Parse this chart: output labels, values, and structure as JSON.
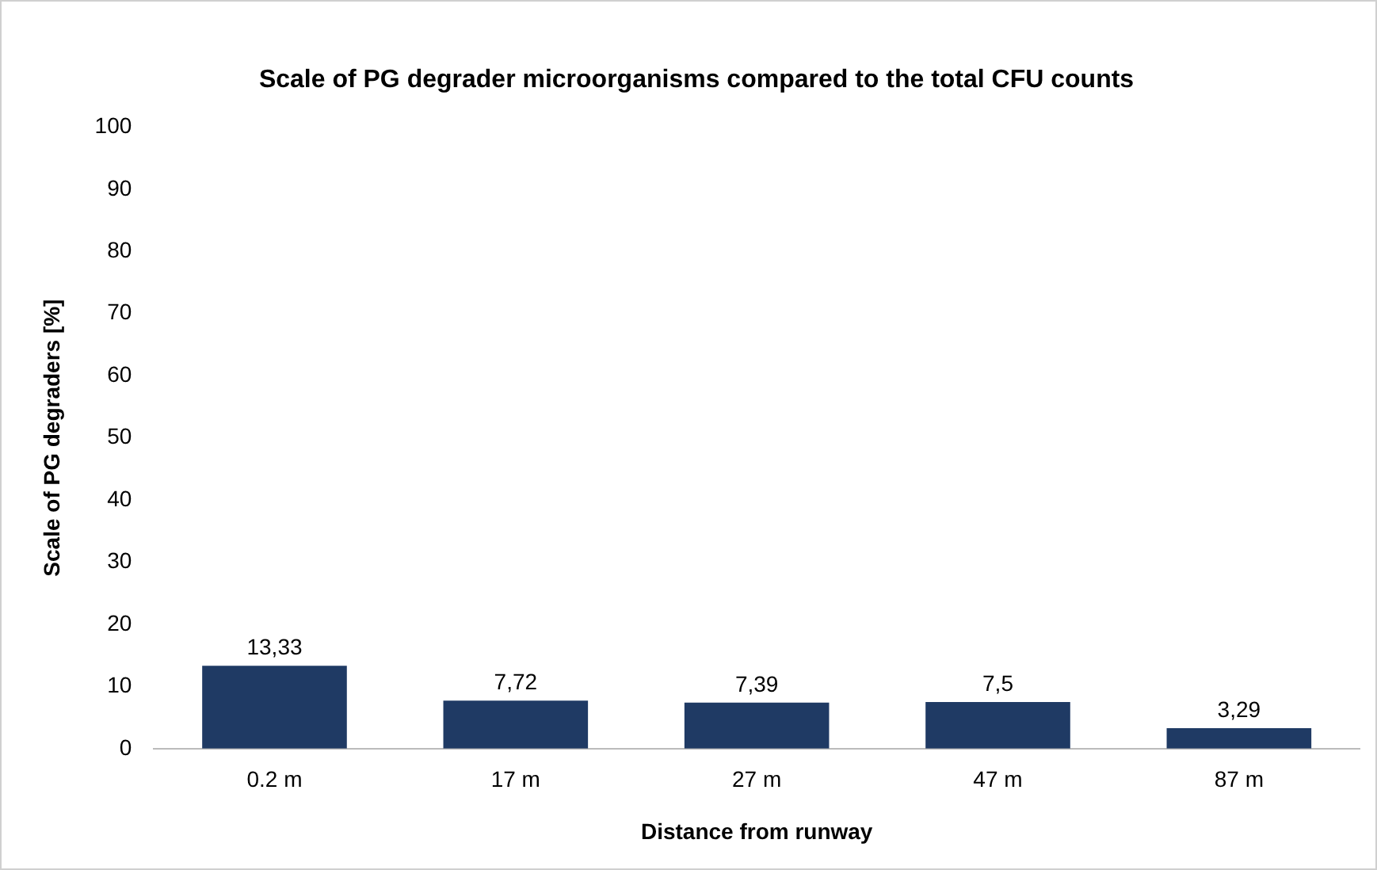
{
  "chart_data": {
    "type": "bar",
    "title": "Scale of PG degrader microorganisms compared to the total CFU counts",
    "xlabel": "Distance from runway",
    "ylabel": "Scale of PG degraders [%]",
    "categories": [
      "0.2 m",
      "17 m",
      "27 m",
      "47 m",
      "87 m"
    ],
    "values": [
      13.33,
      7.72,
      7.39,
      7.5,
      3.29
    ],
    "value_labels": [
      "13,33",
      "7,72",
      "7,39",
      "7,5",
      "3,29"
    ],
    "color": "#1f3a64",
    "ylim": [
      0,
      100
    ],
    "yticks": [
      0,
      10,
      20,
      30,
      40,
      50,
      60,
      70,
      80,
      90,
      100
    ],
    "grid": false,
    "legend": false
  }
}
